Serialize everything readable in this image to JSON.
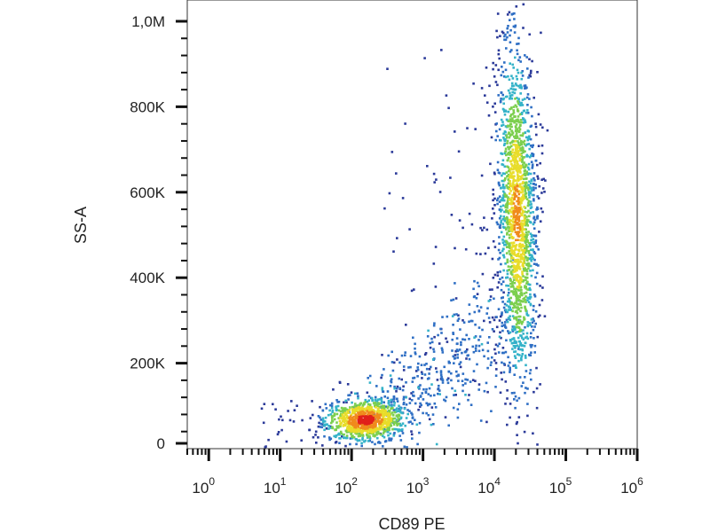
{
  "chart_data": {
    "type": "scatter",
    "title": "",
    "xlabel": "CD89 PE",
    "ylabel": "SS-A",
    "x_scale": "log",
    "xlim": [
      0.5,
      1000000
    ],
    "ylim": [
      0,
      1000000
    ],
    "grid": false,
    "legend": "none",
    "x_ticks": [
      {
        "base": "10",
        "exp": "0"
      },
      {
        "base": "10",
        "exp": "1"
      },
      {
        "base": "10",
        "exp": "2"
      },
      {
        "base": "10",
        "exp": "3"
      },
      {
        "base": "10",
        "exp": "4"
      },
      {
        "base": "10",
        "exp": "5"
      },
      {
        "base": "10",
        "exp": "6"
      }
    ],
    "y_ticks": [
      "0",
      "200K",
      "400K",
      "600K",
      "800K",
      "1,0M"
    ],
    "y_tick_values": [
      0,
      200000,
      400000,
      600000,
      800000,
      1000000
    ],
    "density_colors": [
      "#2b3a99",
      "#2f6fc4",
      "#35b3c9",
      "#7ccf4e",
      "#e8dd2a",
      "#f08a1c",
      "#e0201b"
    ],
    "populations": [
      {
        "center_x": 150,
        "center_y": 70000,
        "points": 900,
        "peak_density": "high"
      },
      {
        "center_x": 20000,
        "center_y": 550000,
        "points": 1700,
        "peak_density": "medium"
      },
      {
        "center_x": 3000,
        "center_y": 250000,
        "points": 450,
        "peak_density": "low"
      }
    ]
  }
}
